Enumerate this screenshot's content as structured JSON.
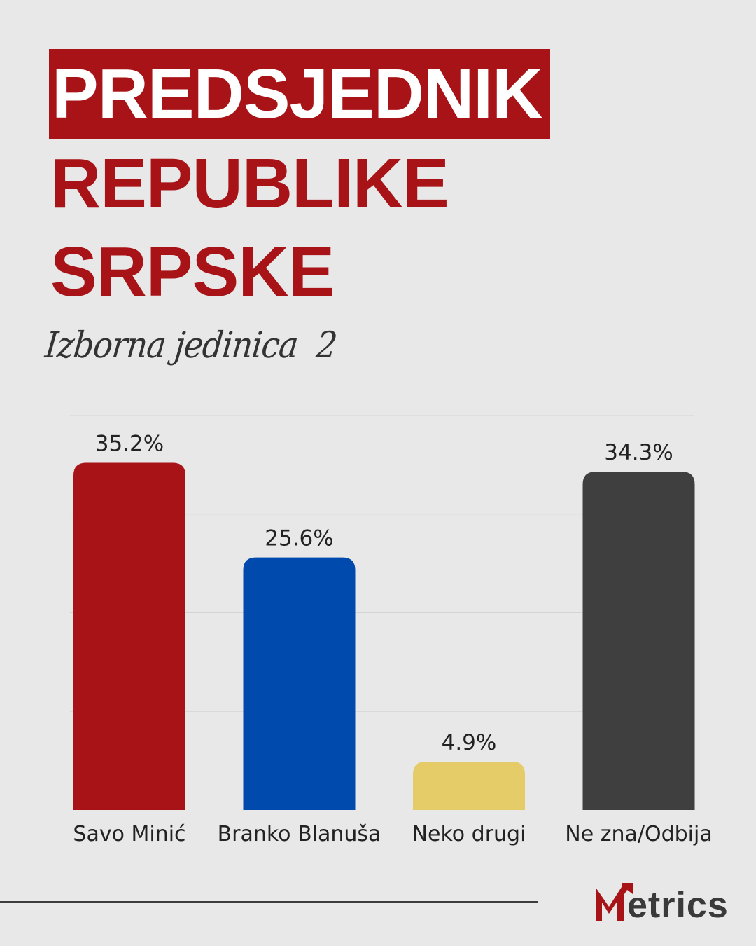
{
  "title": {
    "line1": "PREDSJEDNIK",
    "line2": "REPUBLIKE",
    "line3": "SRPSKE"
  },
  "subtitle": "Izborna jedinica  2",
  "brand": {
    "logo_text": "etrics",
    "logo_label": "Metrics",
    "accent_color": "#a81317",
    "dark_color": "#3a3a3a"
  },
  "chart_data": {
    "type": "bar",
    "categories": [
      "Savo Minić",
      "Branko Blanuša",
      "Neko drugi",
      "Ne zna/Odbija"
    ],
    "values": [
      35.2,
      25.6,
      4.9,
      34.3
    ],
    "value_labels": [
      "35.2%",
      "25.6%",
      "4.9%",
      "34.3%"
    ],
    "colors": [
      "#a81317",
      "#004aad",
      "#e6cc68",
      "#3f3f3f"
    ],
    "ylim": [
      0,
      40
    ],
    "grid": true,
    "legend": "none"
  }
}
